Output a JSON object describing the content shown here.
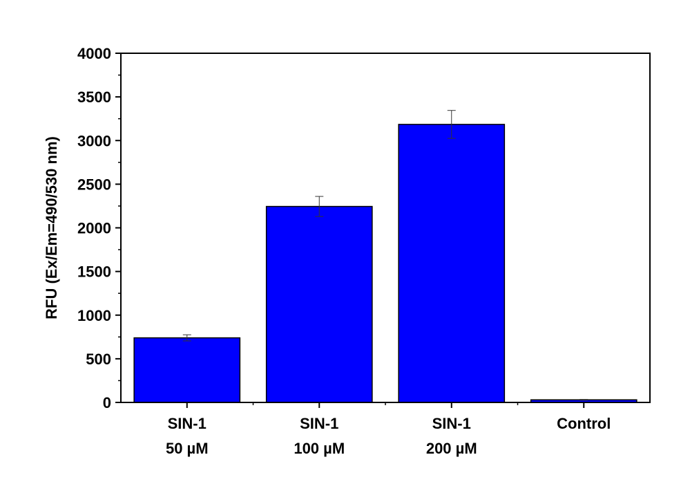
{
  "chart_data": {
    "type": "bar",
    "title": "",
    "xlabel": "",
    "ylabel": "RFU (Ex/Em=490/530 nm)",
    "categories": [
      [
        "SIN-1",
        "50 µM"
      ],
      [
        "SIN-1",
        "100 µM"
      ],
      [
        "SIN-1",
        "200 µM"
      ],
      [
        "Control"
      ]
    ],
    "values": [
      740,
      2245,
      3185,
      30
    ],
    "errors": [
      35,
      115,
      160,
      5
    ],
    "ylim": [
      0,
      4000
    ],
    "yticks": [
      "0",
      "500",
      "1000",
      "1500",
      "2000",
      "2500",
      "3000",
      "3500",
      "4000"
    ],
    "ytick_values": [
      0,
      500,
      1000,
      1500,
      2000,
      2500,
      3000,
      3500,
      4000
    ],
    "bar_color": "#0000ff",
    "grid": false,
    "legend": "none"
  }
}
